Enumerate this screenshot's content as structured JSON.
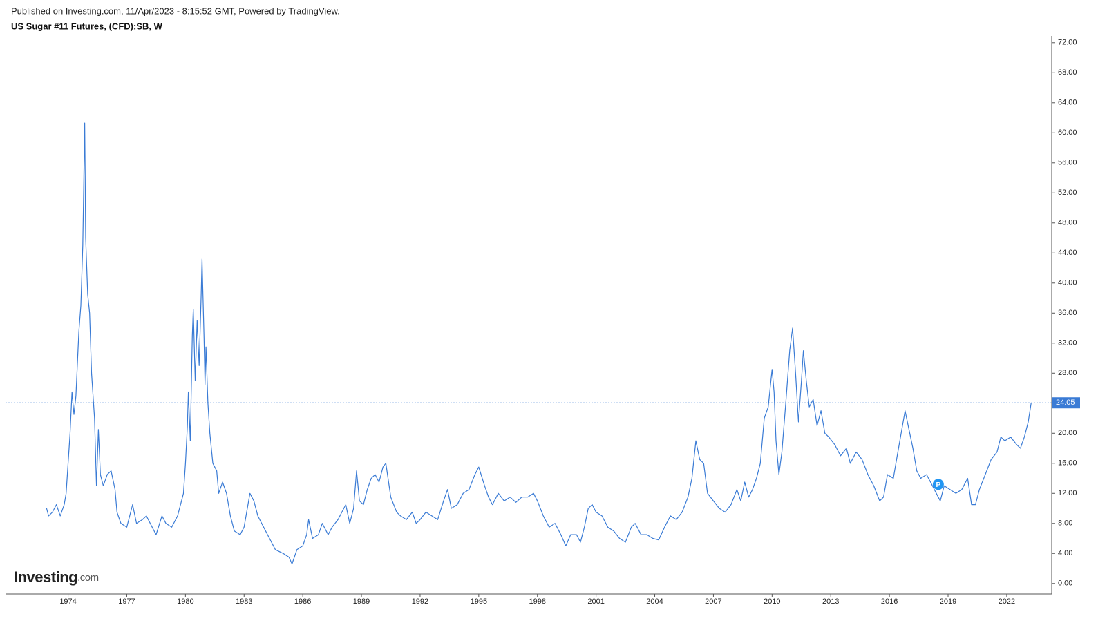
{
  "chart_data": {
    "type": "line",
    "header": "Published on Investing.com, 11/Apr/2023 - 8:15:52 GMT, Powered by TradingView.",
    "title": "US Sugar #11 Futures, (CFD):SB, W",
    "logo": "Investing",
    "logo_suffix": ".com",
    "color": "#3a7bd5",
    "last_value": 24.05,
    "annotation": {
      "text": "P",
      "x": 2018.5,
      "y": 13.2
    },
    "xlim": [
      1970.8,
      2024.3
    ],
    "xticks": [
      1974,
      1977,
      1980,
      1983,
      1986,
      1989,
      1992,
      1995,
      1998,
      2001,
      2004,
      2007,
      2010,
      2013,
      2016,
      2019,
      2022
    ],
    "ylim": [
      -1.4,
      72.9
    ],
    "yticks": [
      {
        "value": 0,
        "label": "0.00"
      },
      {
        "value": 4,
        "label": "4.00"
      },
      {
        "value": 8,
        "label": "8.00"
      },
      {
        "value": 12,
        "label": "12.00"
      },
      {
        "value": 16,
        "label": "16.00"
      },
      {
        "value": 20,
        "label": "20.00"
      },
      {
        "value": 24,
        "label": "24.00"
      },
      {
        "value": 28,
        "label": "28.00"
      },
      {
        "value": 32,
        "label": "32.00"
      },
      {
        "value": 36,
        "label": "36.00"
      },
      {
        "value": 40,
        "label": "40.00"
      },
      {
        "value": 44,
        "label": "44.00"
      },
      {
        "value": 48,
        "label": "48.00"
      },
      {
        "value": 52,
        "label": "52.00"
      },
      {
        "value": 56,
        "label": "56.00"
      },
      {
        "value": 60,
        "label": "60.00"
      },
      {
        "value": 64,
        "label": "64.00"
      },
      {
        "value": 68,
        "label": "68.00"
      },
      {
        "value": 72,
        "label": "72.00"
      }
    ],
    "x": [
      1972.9,
      1973.0,
      1973.2,
      1973.4,
      1973.6,
      1973.8,
      1973.9,
      1974.1,
      1974.2,
      1974.3,
      1974.4,
      1974.55,
      1974.65,
      1974.75,
      1974.85,
      1974.9,
      1975.0,
      1975.1,
      1975.2,
      1975.35,
      1975.45,
      1975.55,
      1975.65,
      1975.8,
      1976.0,
      1976.2,
      1976.4,
      1976.5,
      1976.7,
      1977.0,
      1977.3,
      1977.5,
      1977.8,
      1978.0,
      1978.3,
      1978.5,
      1978.8,
      1979.0,
      1979.3,
      1979.6,
      1979.9,
      1980.0,
      1980.1,
      1980.15,
      1980.25,
      1980.35,
      1980.4,
      1980.5,
      1980.6,
      1980.7,
      1980.8,
      1980.85,
      1980.95,
      1981.0,
      1981.05,
      1981.15,
      1981.25,
      1981.4,
      1981.6,
      1981.7,
      1981.9,
      1982.1,
      1982.3,
      1982.5,
      1982.8,
      1983.0,
      1983.3,
      1983.5,
      1983.7,
      1984.0,
      1984.3,
      1984.6,
      1985.0,
      1985.3,
      1985.45,
      1985.7,
      1986.0,
      1986.2,
      1986.3,
      1986.5,
      1986.8,
      1987.0,
      1987.3,
      1987.5,
      1987.8,
      1988.0,
      1988.2,
      1988.4,
      1988.6,
      1988.75,
      1988.9,
      1989.1,
      1989.3,
      1989.5,
      1989.7,
      1989.9,
      1990.1,
      1990.25,
      1990.5,
      1990.8,
      1991.0,
      1991.3,
      1991.6,
      1991.8,
      1992.0,
      1992.3,
      1992.6,
      1992.9,
      1993.2,
      1993.4,
      1993.6,
      1993.9,
      1994.2,
      1994.5,
      1994.8,
      1995.0,
      1995.3,
      1995.5,
      1995.7,
      1996.0,
      1996.3,
      1996.6,
      1996.9,
      1997.2,
      1997.5,
      1997.8,
      1998.0,
      1998.3,
      1998.6,
      1998.9,
      1999.2,
      1999.45,
      1999.7,
      2000.0,
      2000.2,
      2000.4,
      2000.6,
      2000.8,
      2001.0,
      2001.3,
      2001.6,
      2001.9,
      2002.2,
      2002.5,
      2002.8,
      2003.0,
      2003.3,
      2003.6,
      2003.9,
      2004.2,
      2004.5,
      2004.8,
      2005.1,
      2005.4,
      2005.7,
      2005.9,
      2006.1,
      2006.3,
      2006.5,
      2006.7,
      2007.0,
      2007.3,
      2007.6,
      2007.9,
      2008.2,
      2008.4,
      2008.6,
      2008.8,
      2009.0,
      2009.2,
      2009.4,
      2009.6,
      2009.8,
      2010.0,
      2010.1,
      2010.2,
      2010.35,
      2010.5,
      2010.7,
      2010.9,
      2011.05,
      2011.2,
      2011.35,
      2011.5,
      2011.6,
      2011.75,
      2011.9,
      2012.1,
      2012.3,
      2012.5,
      2012.7,
      2012.9,
      2013.2,
      2013.5,
      2013.8,
      2014.0,
      2014.3,
      2014.6,
      2014.9,
      2015.2,
      2015.5,
      2015.7,
      2015.9,
      2016.2,
      2016.4,
      2016.6,
      2016.8,
      2017.0,
      2017.2,
      2017.4,
      2017.6,
      2017.9,
      2018.2,
      2018.4,
      2018.6,
      2018.8,
      2019.1,
      2019.4,
      2019.7,
      2020.0,
      2020.2,
      2020.4,
      2020.6,
      2020.9,
      2021.2,
      2021.5,
      2021.7,
      2021.9,
      2022.2,
      2022.5,
      2022.7,
      2022.9,
      2023.1,
      2023.25
    ],
    "values": [
      10.0,
      9.0,
      9.5,
      10.5,
      9.0,
      10.5,
      12.0,
      20.0,
      25.5,
      22.5,
      25.0,
      33.5,
      37.0,
      45.0,
      61.3,
      46.0,
      38.5,
      36.0,
      28.0,
      22.0,
      13.0,
      20.5,
      14.5,
      13.0,
      14.5,
      15.0,
      12.5,
      9.5,
      8.0,
      7.5,
      10.5,
      8.0,
      8.5,
      9.0,
      7.5,
      6.5,
      9.0,
      8.0,
      7.5,
      9.0,
      12.0,
      16.0,
      21.0,
      25.5,
      19.0,
      33.0,
      36.5,
      27.0,
      35.0,
      29.0,
      38.0,
      43.2,
      33.0,
      26.5,
      31.5,
      24.0,
      20.0,
      16.0,
      15.0,
      12.0,
      13.5,
      12.0,
      9.0,
      7.0,
      6.5,
      7.5,
      12.0,
      11.0,
      9.0,
      7.5,
      6.0,
      4.5,
      4.0,
      3.5,
      2.6,
      4.5,
      5.0,
      6.5,
      8.5,
      6.0,
      6.5,
      8.0,
      6.5,
      7.5,
      8.5,
      9.5,
      10.5,
      8.0,
      10.0,
      15.0,
      11.0,
      10.5,
      12.5,
      14.0,
      14.5,
      13.5,
      15.5,
      16.0,
      11.5,
      9.5,
      9.0,
      8.5,
      9.5,
      8.0,
      8.5,
      9.5,
      9.0,
      8.5,
      11.0,
      12.5,
      10.0,
      10.5,
      12.0,
      12.5,
      14.5,
      15.5,
      13.0,
      11.5,
      10.5,
      12.0,
      11.0,
      11.5,
      10.8,
      11.5,
      11.5,
      12.0,
      11.0,
      9.0,
      7.5,
      8.0,
      6.5,
      5.0,
      6.5,
      6.5,
      5.5,
      7.5,
      10.0,
      10.5,
      9.5,
      9.0,
      7.5,
      7.0,
      6.0,
      5.5,
      7.5,
      8.0,
      6.5,
      6.5,
      6.0,
      5.8,
      7.5,
      9.0,
      8.5,
      9.5,
      11.5,
      14.0,
      19.0,
      16.5,
      16.0,
      12.0,
      11.0,
      10.0,
      9.5,
      10.5,
      12.5,
      11.0,
      13.5,
      11.5,
      12.5,
      14.0,
      16.0,
      22.0,
      23.5,
      28.5,
      25.5,
      19.0,
      14.5,
      17.5,
      24.0,
      31.0,
      34.0,
      28.0,
      21.5,
      27.0,
      31.0,
      27.0,
      23.5,
      24.5,
      21.0,
      23.0,
      20.0,
      19.5,
      18.5,
      17.0,
      18.0,
      16.0,
      17.5,
      16.5,
      14.5,
      13.0,
      11.0,
      11.5,
      14.5,
      14.0,
      17.0,
      20.0,
      23.0,
      20.5,
      18.0,
      15.0,
      14.0,
      14.5,
      13.0,
      12.0,
      11.0,
      13.0,
      12.5,
      12.0,
      12.5,
      14.0,
      10.5,
      10.5,
      12.5,
      14.5,
      16.5,
      17.5,
      19.5,
      19.0,
      19.5,
      18.5,
      18.0,
      19.5,
      21.5,
      24.05
    ]
  }
}
